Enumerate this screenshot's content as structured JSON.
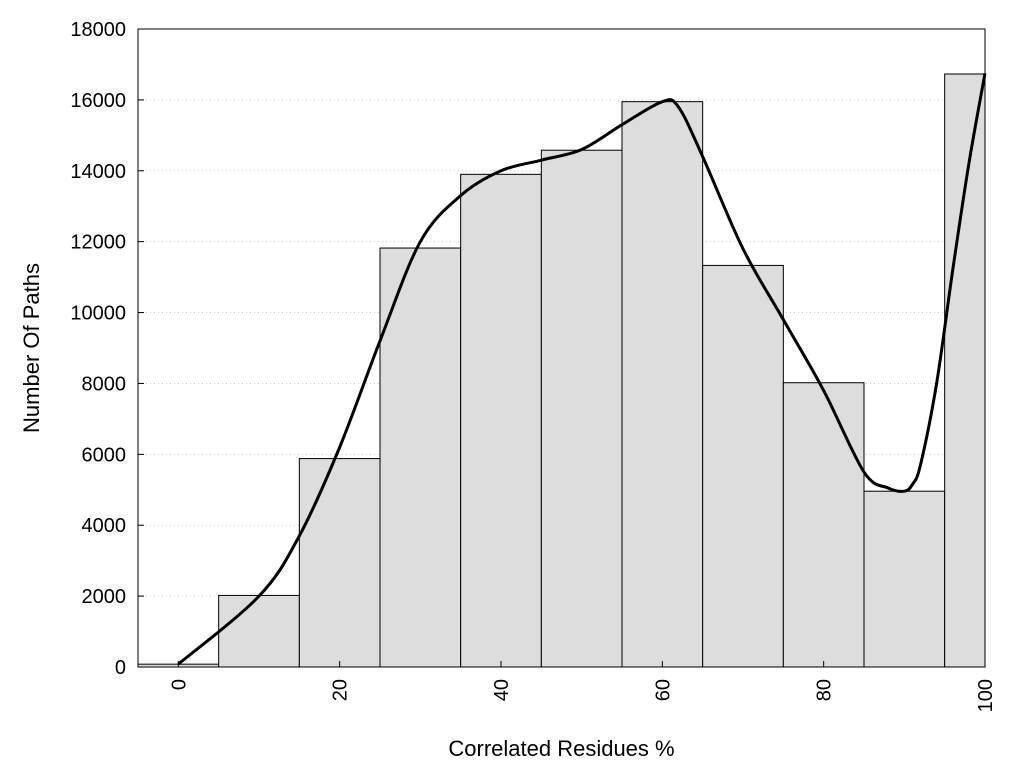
{
  "chart_data": {
    "type": "bar",
    "title": "",
    "xlabel": "Correlated Residues %",
    "ylabel": "Number Of Paths",
    "xlim": [
      -5,
      100
    ],
    "ylim": [
      0,
      18000
    ],
    "grid": "horizontal dotted",
    "bar_width": 10,
    "x_ticks": [
      0,
      20,
      40,
      60,
      80,
      100
    ],
    "y_ticks": [
      0,
      2000,
      4000,
      6000,
      8000,
      10000,
      12000,
      14000,
      16000,
      18000
    ],
    "series": [
      {
        "kind": "bars",
        "x": [
          0,
          10,
          20,
          30,
          40,
          50,
          60,
          70,
          80,
          90,
          100
        ],
        "values": [
          80,
          2020,
          5880,
          11820,
          13900,
          14580,
          15950,
          11330,
          8020,
          4960,
          16730
        ],
        "color": "#dddddd"
      },
      {
        "kind": "line",
        "x": [
          0,
          10,
          15,
          20,
          25,
          30,
          35,
          40,
          45,
          50,
          55,
          60,
          62,
          65,
          70,
          75,
          80,
          85,
          88,
          90,
          91,
          92,
          94,
          96,
          98,
          100
        ],
        "values": [
          80,
          2000,
          3700,
          6200,
          9200,
          12000,
          13300,
          14000,
          14300,
          14600,
          15300,
          15950,
          15800,
          14400,
          11800,
          9800,
          7800,
          5500,
          5050,
          4960,
          5150,
          5700,
          8000,
          11200,
          14200,
          16750
        ],
        "color": "#000000"
      }
    ]
  }
}
